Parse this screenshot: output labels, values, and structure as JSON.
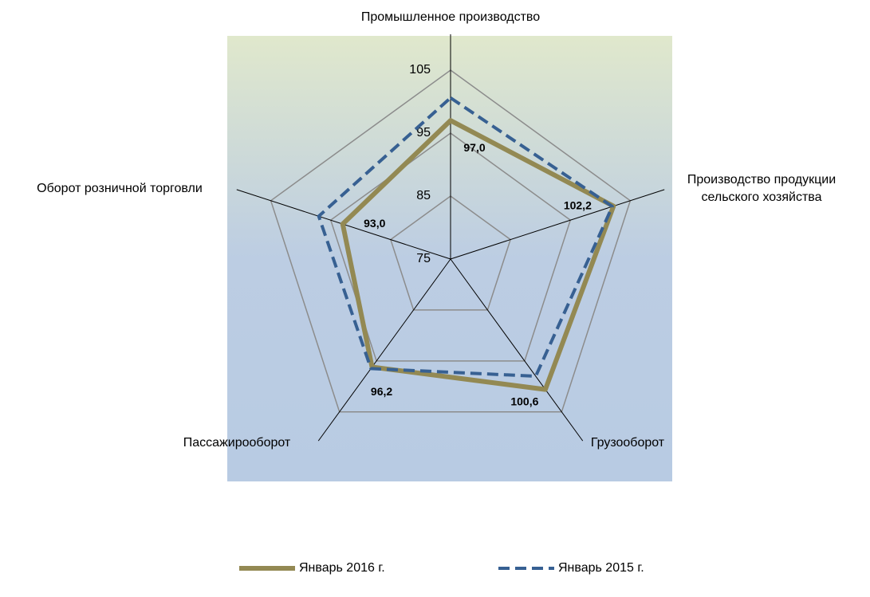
{
  "chart_data": {
    "type": "radar",
    "categories": [
      "Промышленное производство",
      "Производство продукции сельского хозяйства",
      "Грузооборот",
      "Пассажирооборот",
      "Оборот розничной торговли"
    ],
    "series": [
      {
        "name": "Январь 2016 г.",
        "color": "#938953",
        "values": [
          97.0,
          102.2,
          100.6,
          96.2,
          93.0
        ],
        "value_labels": [
          "97,0",
          "102,2",
          "100,6",
          "96,2",
          "93,0"
        ]
      },
      {
        "name": "Январь 2015 г.",
        "color": "#376092",
        "values": [
          100.6,
          102.0,
          98.0,
          96.5,
          97.0
        ],
        "dashed": true
      }
    ],
    "ylim": [
      75,
      105
    ],
    "yticks": [
      75,
      85,
      95,
      105
    ],
    "grid": true,
    "legend": "bottom"
  }
}
